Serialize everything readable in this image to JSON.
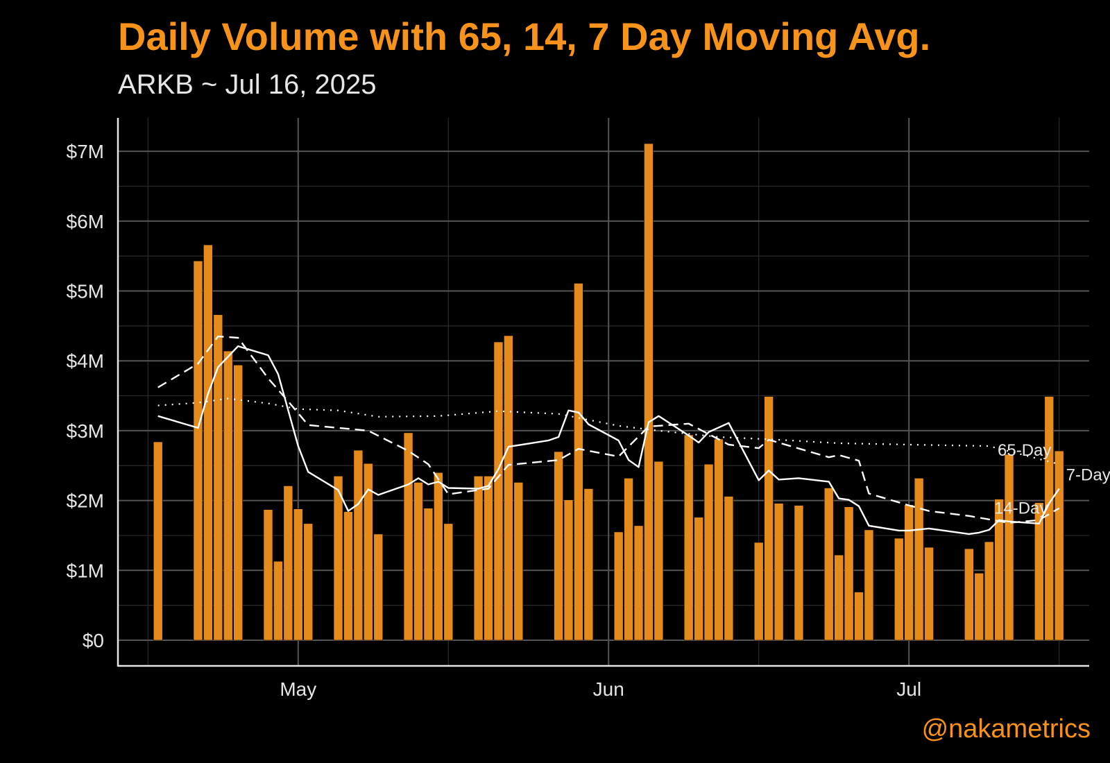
{
  "header": {
    "title": "Daily Volume with 65, 14, 7 Day Moving Avg.",
    "subtitle": "ARKB ~ Jul 16, 2025"
  },
  "credit": "@nakametrics",
  "colors": {
    "bars": "#E48B1C",
    "accent": "#F7931A",
    "lines": "#ffffff",
    "background": "#000000"
  },
  "chart_data": {
    "type": "bar",
    "title": "Daily Volume with 65, 14, 7 Day Moving Avg.",
    "subtitle": "ARKB ~ Jul 16, 2025",
    "xlabel": "",
    "ylabel": "",
    "ylim": [
      0,
      7500000
    ],
    "y_ticks": [
      0,
      1000000,
      2000000,
      3000000,
      4000000,
      5000000,
      6000000,
      7000000
    ],
    "y_tick_labels": [
      "$0",
      "$1M",
      "$2M",
      "$3M",
      "$4M",
      "$5M",
      "$6M",
      "$7M"
    ],
    "xlim": [
      "2025-04-13",
      "2025-07-19"
    ],
    "x_ticks": [
      "2025-05-01",
      "2025-06-01",
      "2025-07-01"
    ],
    "x_tick_labels": [
      "May",
      "Jun",
      "Jul"
    ],
    "grid": true,
    "series": [
      {
        "type": "bar",
        "x": [
          "2025-04-17",
          "2025-04-21",
          "2025-04-22",
          "2025-04-23",
          "2025-04-24",
          "2025-04-25",
          "2025-04-28",
          "2025-04-29",
          "2025-04-30",
          "2025-05-01",
          "2025-05-02",
          "2025-05-05",
          "2025-05-06",
          "2025-05-07",
          "2025-05-08",
          "2025-05-09",
          "2025-05-12",
          "2025-05-13",
          "2025-05-14",
          "2025-05-15",
          "2025-05-16",
          "2025-05-19",
          "2025-05-20",
          "2025-05-21",
          "2025-05-22",
          "2025-05-23",
          "2025-05-27",
          "2025-05-28",
          "2025-05-29",
          "2025-05-30",
          "2025-06-02",
          "2025-06-03",
          "2025-06-04",
          "2025-06-05",
          "2025-06-06",
          "2025-06-09",
          "2025-06-10",
          "2025-06-11",
          "2025-06-12",
          "2025-06-13",
          "2025-06-16",
          "2025-06-17",
          "2025-06-18",
          "2025-06-20",
          "2025-06-23",
          "2025-06-24",
          "2025-06-25",
          "2025-06-26",
          "2025-06-27",
          "2025-06-30",
          "2025-07-01",
          "2025-07-02",
          "2025-07-03",
          "2025-07-07",
          "2025-07-08",
          "2025-07-09",
          "2025-07-10",
          "2025-07-11",
          "2025-07-14",
          "2025-07-15",
          "2025-07-16"
        ],
        "values": [
          2840000,
          5430000,
          5660000,
          4660000,
          4140000,
          3940000,
          1870000,
          1130000,
          2210000,
          1880000,
          1670000,
          2350000,
          1840000,
          2720000,
          2530000,
          1520000,
          2970000,
          2260000,
          1890000,
          2400000,
          1670000,
          2350000,
          2350000,
          4270000,
          4360000,
          2260000,
          2700000,
          2010000,
          5110000,
          2170000,
          1550000,
          2320000,
          1640000,
          7110000,
          2560000,
          2940000,
          1760000,
          2520000,
          2880000,
          2060000,
          1400000,
          3490000,
          1960000,
          1930000,
          2180000,
          1220000,
          1910000,
          690000,
          1580000,
          1460000,
          1940000,
          2320000,
          1330000,
          1310000,
          960000,
          1410000,
          2020000,
          2660000,
          1970000,
          3490000,
          2710000
        ]
      },
      {
        "type": "line",
        "name": "65-Day",
        "style": "dotted",
        "x": [
          "2025-04-17",
          "2025-04-21",
          "2025-04-24",
          "2025-04-28",
          "2025-05-01",
          "2025-05-05",
          "2025-05-09",
          "2025-05-15",
          "2025-05-21",
          "2025-05-27",
          "2025-06-02",
          "2025-06-06",
          "2025-06-12",
          "2025-06-18",
          "2025-06-24",
          "2025-07-01",
          "2025-07-09",
          "2025-07-16"
        ],
        "values": [
          3360000,
          3400000,
          3460000,
          3390000,
          3310000,
          3290000,
          3200000,
          3210000,
          3280000,
          3240000,
          3070000,
          3000000,
          2910000,
          2870000,
          2820000,
          2800000,
          2780000,
          2520000
        ]
      },
      {
        "type": "line",
        "name": "14-Day",
        "style": "dashed",
        "x": [
          "2025-04-17",
          "2025-04-21",
          "2025-04-23",
          "2025-04-25",
          "2025-04-28",
          "2025-04-30",
          "2025-05-02",
          "2025-05-08",
          "2025-05-12",
          "2025-05-14",
          "2025-05-16",
          "2025-05-20",
          "2025-05-22",
          "2025-05-27",
          "2025-05-29",
          "2025-06-02",
          "2025-06-05",
          "2025-06-09",
          "2025-06-13",
          "2025-06-16",
          "2025-06-17",
          "2025-06-23",
          "2025-06-24",
          "2025-06-26",
          "2025-06-27",
          "2025-07-01",
          "2025-07-03",
          "2025-07-07",
          "2025-07-09",
          "2025-07-11",
          "2025-07-14",
          "2025-07-16"
        ],
        "values": [
          3620000,
          3960000,
          4350000,
          4330000,
          3750000,
          3420000,
          3080000,
          3000000,
          2710000,
          2520000,
          2090000,
          2170000,
          2510000,
          2580000,
          2740000,
          2630000,
          3060000,
          3100000,
          2800000,
          2750000,
          2870000,
          2620000,
          2650000,
          2570000,
          2100000,
          1930000,
          1850000,
          1780000,
          1730000,
          1680000,
          1720000,
          1890000
        ]
      },
      {
        "type": "line",
        "name": "7-Day",
        "style": "solid",
        "x": [
          "2025-04-17",
          "2025-04-21",
          "2025-04-22",
          "2025-04-23",
          "2025-04-25",
          "2025-04-28",
          "2025-04-29",
          "2025-05-01",
          "2025-05-02",
          "2025-05-05",
          "2025-05-06",
          "2025-05-07",
          "2025-05-08",
          "2025-05-09",
          "2025-05-12",
          "2025-05-13",
          "2025-05-14",
          "2025-05-15",
          "2025-05-16",
          "2025-05-19",
          "2025-05-20",
          "2025-05-21",
          "2025-05-22",
          "2025-05-26",
          "2025-05-27",
          "2025-05-28",
          "2025-05-29",
          "2025-05-30",
          "2025-06-02",
          "2025-06-03",
          "2025-06-04",
          "2025-06-05",
          "2025-06-06",
          "2025-06-09",
          "2025-06-10",
          "2025-06-11",
          "2025-06-13",
          "2025-06-16",
          "2025-06-17",
          "2025-06-18",
          "2025-06-20",
          "2025-06-23",
          "2025-06-24",
          "2025-06-25",
          "2025-06-26",
          "2025-06-27",
          "2025-06-30",
          "2025-07-01",
          "2025-07-03",
          "2025-07-07",
          "2025-07-08",
          "2025-07-09",
          "2025-07-10",
          "2025-07-11",
          "2025-07-14",
          "2025-07-15",
          "2025-07-16"
        ],
        "values": [
          3210000,
          3040000,
          3530000,
          3910000,
          4210000,
          4080000,
          3810000,
          2780000,
          2410000,
          2150000,
          1850000,
          1950000,
          2160000,
          2080000,
          2230000,
          2320000,
          2230000,
          2270000,
          2180000,
          2170000,
          2210000,
          2450000,
          2770000,
          2860000,
          2910000,
          3290000,
          3260000,
          3090000,
          2860000,
          2580000,
          2480000,
          3120000,
          3210000,
          2930000,
          2830000,
          2980000,
          3110000,
          2290000,
          2430000,
          2300000,
          2320000,
          2270000,
          2030000,
          2010000,
          1920000,
          1640000,
          1570000,
          1570000,
          1600000,
          1520000,
          1540000,
          1580000,
          1720000,
          1700000,
          1670000,
          1960000,
          2170000
        ]
      }
    ],
    "line_labels": [
      "65-Day",
      "14-Day",
      "7-Day"
    ]
  }
}
